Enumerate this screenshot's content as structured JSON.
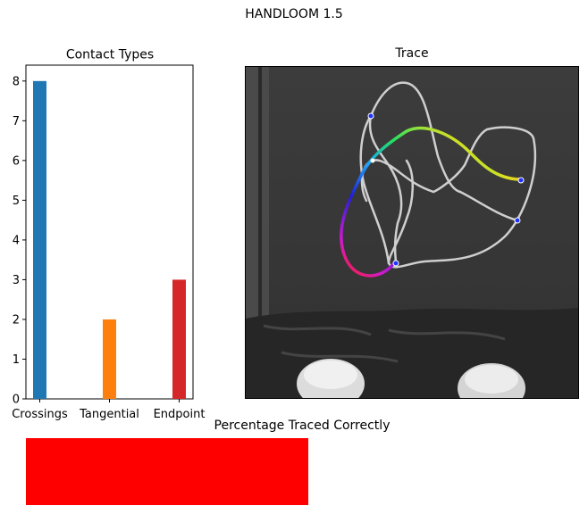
{
  "figure": {
    "title": "HANDLOOM 1.5"
  },
  "chart_data": [
    {
      "type": "bar",
      "title": "Contact Types",
      "categories": [
        "Crossings",
        "Tangential",
        "Endpoint"
      ],
      "values": [
        8,
        2,
        3
      ],
      "colors": [
        "#1f77b4",
        "#ff7f0e",
        "#d62728"
      ],
      "ylim": [
        0,
        8.4
      ],
      "yticks": [
        0,
        1,
        2,
        3,
        4,
        5,
        6,
        7,
        8
      ],
      "xlabel": "",
      "ylabel": "",
      "grid": false
    }
  ],
  "trace": {
    "title": "Trace"
  },
  "percentage": {
    "title": "Percentage Traced Correctly",
    "value_fraction": 0.5,
    "color": "#ff0000"
  }
}
